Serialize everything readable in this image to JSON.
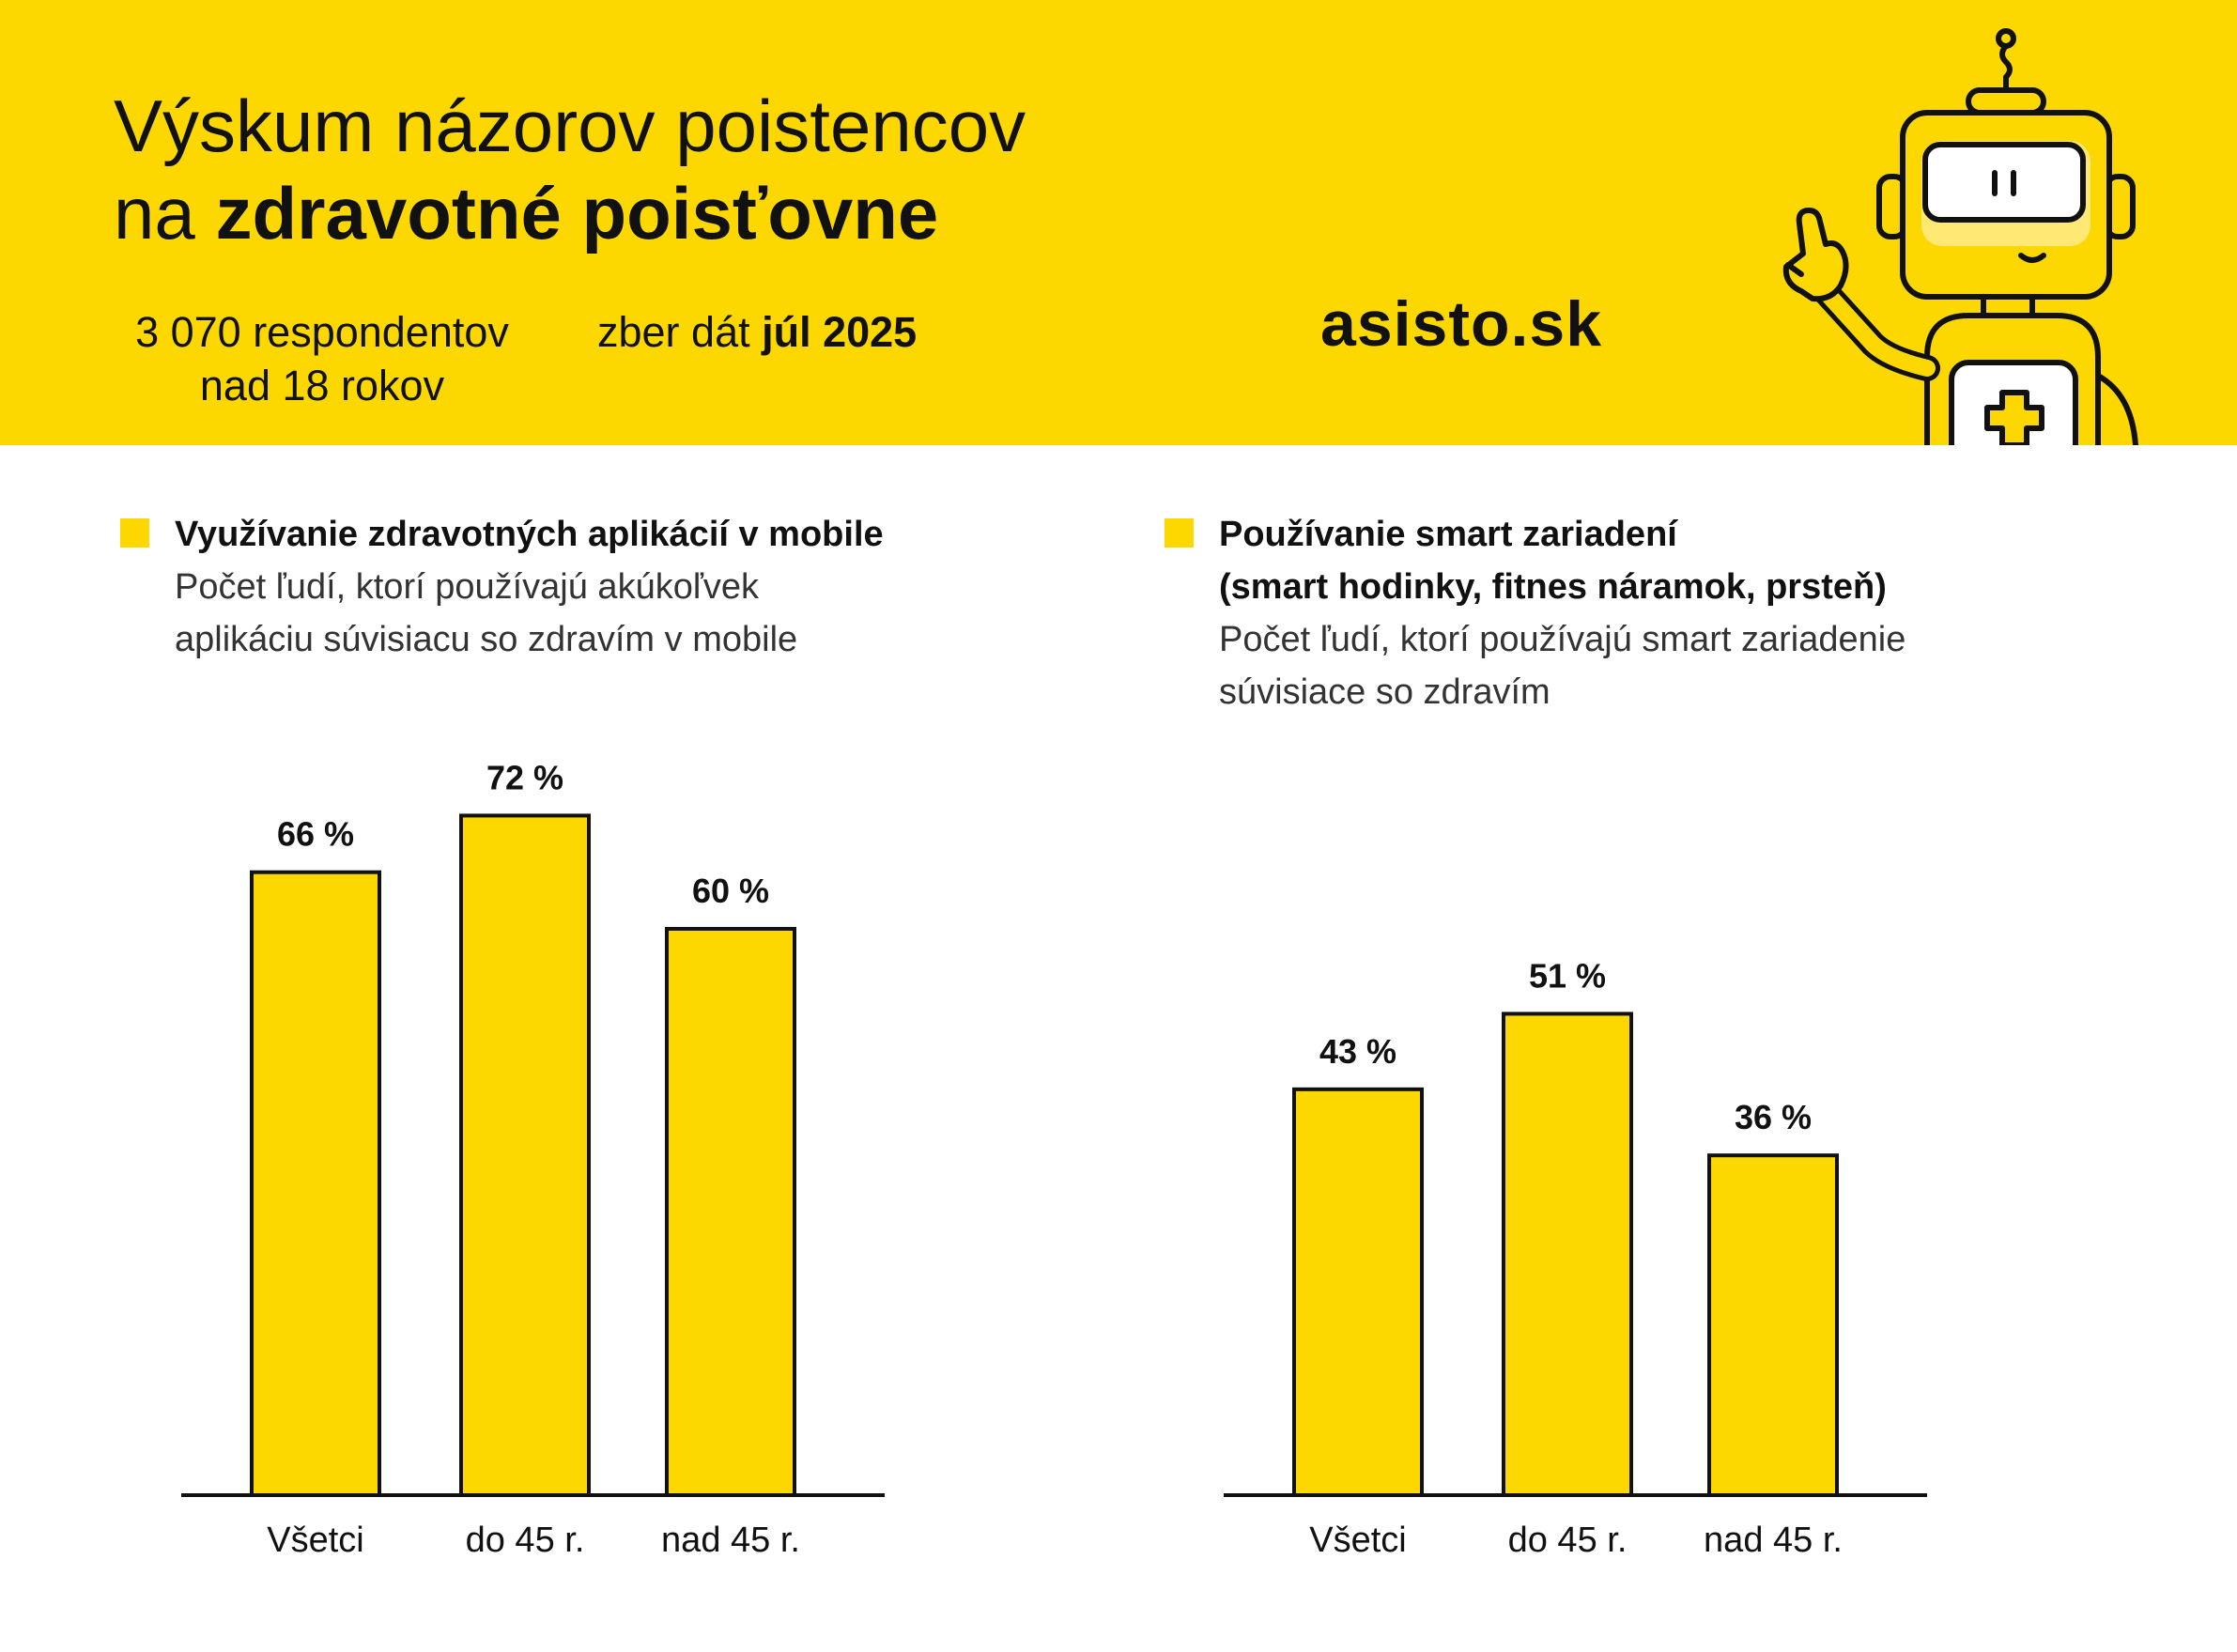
{
  "header": {
    "title_line1": "Výskum názorov poistencov",
    "title_line2_prefix": "na ",
    "title_line2_bold": "zdravotné poisťovne",
    "respondents_line1": "3 070 respondentov",
    "respondents_line2": "nad 18 rokov",
    "date_prefix": "zber dát ",
    "date_bold": "júl 2025",
    "brand": "asisto.sk",
    "mascot_icon": "robot-doctor-mascot-icon"
  },
  "colors": {
    "accent": "#FCD800",
    "text": "#111111",
    "outline": "#111111",
    "background": "#FFFFFF"
  },
  "sections": [
    {
      "heading_bold": "Využívanie zdravotných aplikácií v mobile",
      "subtitle_line1": "Počet ľudí, ktorí používajú akúkoľvek",
      "subtitle_line2": "aplikáciu súvisiacu so zdravím v mobile"
    },
    {
      "heading_bold_line1": "Používanie smart zariadení",
      "heading_bold_line2": "(smart hodinky, fitnes náramok, prsteň)",
      "subtitle_line1": "Počet ľudí, ktorí používajú smart zariadenie",
      "subtitle_line2": "súvisiace so zdravím"
    }
  ],
  "chart_data": [
    {
      "type": "bar",
      "categories": [
        "Všetci",
        "do 45 r.",
        "nad 45 r."
      ],
      "values": [
        66,
        72,
        60
      ],
      "value_labels": [
        "66 %",
        "72 %",
        "60 %"
      ],
      "unit": "%",
      "ylim": [
        0,
        100
      ],
      "grid": false
    },
    {
      "type": "bar",
      "categories": [
        "Všetci",
        "do 45 r.",
        "nad 45 r."
      ],
      "values": [
        43,
        51,
        36
      ],
      "value_labels": [
        "43 %",
        "51 %",
        "36 %"
      ],
      "unit": "%",
      "ylim": [
        0,
        100
      ],
      "grid": false
    }
  ]
}
